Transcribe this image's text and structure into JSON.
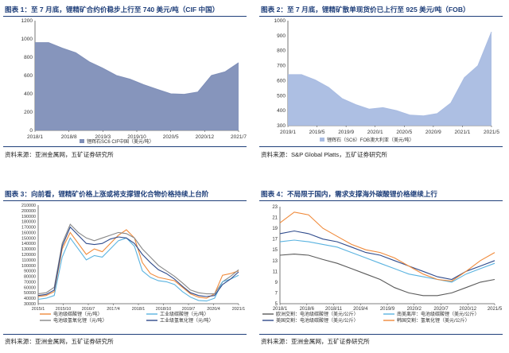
{
  "panels": [
    {
      "title": "图表 1：至 7 月底，锂精矿合约价稳步上行至 740 美元/吨（CIF 中国）",
      "source": "资料来源：亚洲金属网，五矿证券研究所"
    },
    {
      "title": "图表 2：至 7 月底，锂精矿散单现货价已上行至 925 美元/吨（FOB）",
      "source": "资料来源：S&P Global Platts，五矿证券研究所"
    },
    {
      "title": "图表 3：向前看，锂精矿价格上涨或将支撑锂化合物价格持续上台阶",
      "source": "资料来源：亚洲金属网，五矿证券研究所"
    },
    {
      "title": "图表 4：不局限于国内，需求支撑海外碳酸锂价格继续上行",
      "source": "资料来源：亚洲金属网，五矿证券研究所"
    }
  ],
  "chart_data": [
    {
      "type": "area",
      "ylim": [
        0,
        1200
      ],
      "yticks": [
        "0",
        "200",
        "400",
        "600",
        "800",
        "1000",
        "1200"
      ],
      "xticks": [
        "2018/1",
        "2018/8",
        "2019/3",
        "2019/10",
        "2020/5",
        "2020/12",
        "2021/7"
      ],
      "x": [
        "2018/1",
        "2018/4",
        "2018/7",
        "2018/10",
        "2019/1",
        "2019/4",
        "2019/7",
        "2019/10",
        "2020/1",
        "2020/4",
        "2020/7",
        "2020/10",
        "2021/1",
        "2021/3",
        "2021/5",
        "2021/7"
      ],
      "series": [
        {
          "name": "锂辉石SC6 CIF中国（美元/吨）",
          "color": "#7f8fb8",
          "values": [
            960,
            960,
            900,
            850,
            750,
            680,
            600,
            560,
            500,
            450,
            400,
            395,
            420,
            600,
            640,
            740
          ]
        }
      ]
    },
    {
      "type": "area",
      "ylim": [
        300,
        1000
      ],
      "yticks": [
        "300",
        "400",
        "500",
        "600",
        "700",
        "800",
        "900",
        "1000"
      ],
      "xticks": [
        "2019/1",
        "2019/5",
        "2019/9",
        "2020/1",
        "2020/5",
        "2020/9",
        "2021/1",
        "2021/5"
      ],
      "x": [
        "2019/1",
        "2019/3",
        "2019/5",
        "2019/7",
        "2019/9",
        "2019/11",
        "2020/1",
        "2020/3",
        "2020/5",
        "2020/7",
        "2020/9",
        "2020/11",
        "2021/1",
        "2021/3",
        "2021/5",
        "2021/7"
      ],
      "series": [
        {
          "name": "锂辉石（SC6）FOB澳大利亚（美元/吨）",
          "color": "#a9bce2",
          "values": [
            640,
            640,
            605,
            555,
            480,
            440,
            410,
            420,
            400,
            370,
            365,
            380,
            450,
            620,
            700,
            925
          ]
        }
      ]
    },
    {
      "type": "line",
      "ylim": [
        30000,
        210000
      ],
      "yticks": [
        "30000",
        "40000",
        "50000",
        "60000",
        "70000",
        "80000",
        "90000",
        "100000",
        "110000",
        "120000",
        "130000",
        "140000",
        "150000",
        "160000",
        "170000",
        "180000",
        "190000",
        "200000",
        "210000"
      ],
      "xticks": [
        "2015/1",
        "2015/10",
        "2016/7",
        "2017/4",
        "2018/1",
        "2018/10",
        "2019/7",
        "2020/4",
        "2021/1"
      ],
      "x": [
        "2015/1",
        "2015/6",
        "2015/10",
        "2016/2",
        "2016/5",
        "2016/8",
        "2016/11",
        "2017/2",
        "2017/5",
        "2017/8",
        "2017/11",
        "2018/2",
        "2018/5",
        "2018/8",
        "2018/11",
        "2019/2",
        "2019/5",
        "2019/8",
        "2019/11",
        "2020/2",
        "2020/5",
        "2020/8",
        "2020/11",
        "2021/2",
        "2021/5",
        "2021/7"
      ],
      "legend": [
        "电池级碳酸锂（元/吨）",
        "电池级氢氧化锂（元/吨）",
        "工业级碳酸锂（元/吨）",
        "工业级氢氧化锂（元/吨）"
      ],
      "series": [
        {
          "name": "电池级碳酸锂（元/吨）",
          "color": "#f08a3a",
          "values": [
            43000,
            45000,
            52000,
            130000,
            160000,
            140000,
            120000,
            130000,
            125000,
            140000,
            155000,
            165000,
            150000,
            105000,
            85000,
            78000,
            75000,
            72000,
            60000,
            48000,
            42000,
            40000,
            48000,
            82000,
            85000,
            90000
          ]
        },
        {
          "name": "电池级氢氧化锂（元/吨）",
          "color": "#888888",
          "values": [
            48000,
            50000,
            60000,
            140000,
            175000,
            160000,
            150000,
            145000,
            150000,
            155000,
            160000,
            158000,
            150000,
            130000,
            115000,
            100000,
            90000,
            80000,
            68000,
            55000,
            50000,
            48000,
            48000,
            70000,
            80000,
            92000
          ]
        },
        {
          "name": "工业级碳酸锂（元/吨）",
          "color": "#5ab3e0",
          "values": [
            38000,
            40000,
            45000,
            115000,
            150000,
            130000,
            110000,
            118000,
            115000,
            130000,
            145000,
            150000,
            135000,
            90000,
            78000,
            72000,
            70000,
            65000,
            52000,
            42000,
            36000,
            35000,
            40000,
            70000,
            75000,
            82000
          ]
        },
        {
          "name": "工业级氢氧化锂（元/吨）",
          "color": "#2f4b8c",
          "values": [
            45000,
            47000,
            55000,
            135000,
            170000,
            155000,
            140000,
            138000,
            140000,
            148000,
            152000,
            150000,
            140000,
            120000,
            105000,
            92000,
            85000,
            75000,
            62000,
            50000,
            45000,
            43000,
            45000,
            65000,
            75000,
            88000
          ]
        }
      ]
    },
    {
      "type": "line",
      "ylim": [
        5,
        23
      ],
      "yticks": [
        "5",
        "7",
        "9",
        "11",
        "13",
        "15",
        "17",
        "19",
        "21",
        "23"
      ],
      "xticks": [
        "2018/1",
        "2018/6",
        "2018/11",
        "2019/4",
        "2019/9",
        "2020/2",
        "2020/7",
        "2020/12",
        "2021/5"
      ],
      "x": [
        "2018/1",
        "2018/3",
        "2018/6",
        "2018/9",
        "2018/12",
        "2019/3",
        "2019/6",
        "2019/9",
        "2019/12",
        "2020/3",
        "2020/6",
        "2020/9",
        "2020/12",
        "2021/3",
        "2021/5",
        "2021/7"
      ],
      "legend": [
        "欧洲交割：电池级碳酸锂（美元/公斤）",
        "美国交割：电池级碳酸锂（美元/公斤）",
        "南美离岸：电池级碳酸锂（美元/公斤）",
        "韩国交割：氢氧化锂（美元/公斤）"
      ],
      "series": [
        {
          "name": "欧洲交割：电池级碳酸锂（美元/公斤）",
          "color": "#5a5a5a",
          "values": [
            14,
            14.2,
            14,
            13.2,
            12.5,
            11.5,
            10.5,
            9.5,
            8,
            7,
            6.5,
            6.5,
            7,
            8,
            9,
            9.5
          ]
        },
        {
          "name": "美国交割：电池级碳酸锂（美元/公斤）",
          "color": "#2f4b8c",
          "values": [
            18,
            18.5,
            18,
            17,
            16.5,
            15.5,
            14.5,
            14,
            13,
            12,
            11,
            10,
            9.5,
            11,
            12,
            13
          ]
        },
        {
          "name": "南美离岸：电池级碳酸锂（美元/公斤）",
          "color": "#5ab3e0",
          "values": [
            16.5,
            16.8,
            16.5,
            16,
            15.5,
            14.5,
            13.5,
            12.5,
            11.5,
            10.5,
            10,
            9.5,
            9,
            10.5,
            11.5,
            12.5
          ]
        },
        {
          "name": "韩国交割：氢氧化锂（美元/公斤）",
          "color": "#f08a3a",
          "values": [
            20,
            22,
            21.5,
            19,
            17.5,
            16,
            15,
            14.5,
            13.5,
            12,
            10.5,
            9.5,
            9.2,
            11,
            13,
            14.5
          ]
        }
      ]
    }
  ]
}
